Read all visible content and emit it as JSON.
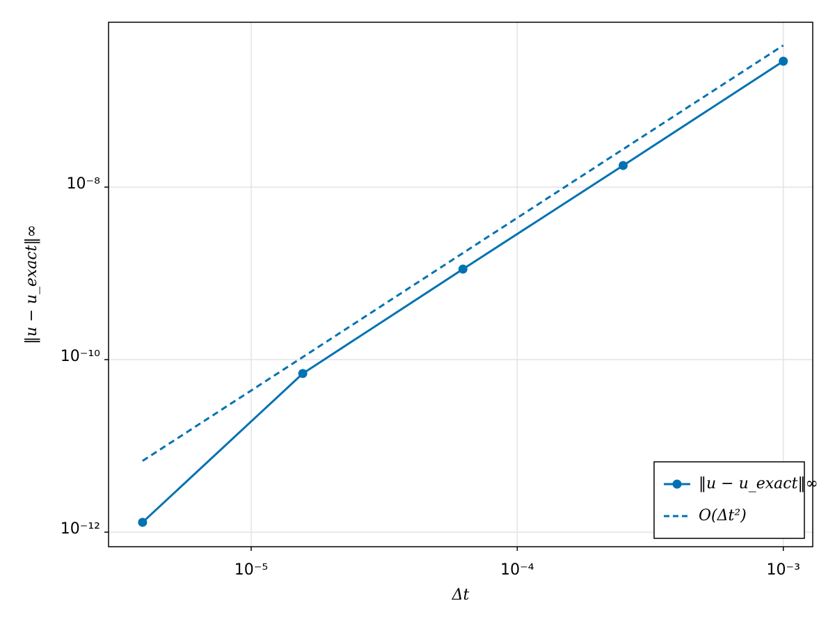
{
  "chart_data": {
    "type": "line",
    "x_label": "Δt",
    "y_label": "‖u − u_exact‖∞",
    "x": [
      3.906e-06,
      1.5625e-05,
      6.25e-05,
      0.00025,
      0.001
    ],
    "series": [
      {
        "name": "‖u − u_exact‖∞",
        "color": "#0072b2",
        "values": [
          1.3e-12,
          6.9e-11,
          1.12e-09,
          1.78e-08,
          2.88e-07
        ],
        "markers": true,
        "dashed": false
      },
      {
        "name": "O(Δt²)",
        "color": "#0072b2",
        "values": [
          6.7e-12,
          1.07e-10,
          1.72e-09,
          2.75e-08,
          4.4e-07
        ],
        "markers": false,
        "dashed": true
      }
    ],
    "xscale": "log",
    "yscale": "log",
    "xlim": [
      2.91e-06,
      0.00129
    ],
    "ylim": [
      6.78e-13,
      8.15e-07
    ],
    "xticks": [
      {
        "value": 1e-05,
        "label": "10⁻⁵"
      },
      {
        "value": 0.0001,
        "label": "10⁻⁴"
      },
      {
        "value": 0.001,
        "label": "10⁻³"
      }
    ],
    "yticks": [
      {
        "value": 1e-12,
        "label": "10⁻¹²"
      },
      {
        "value": 1e-10,
        "label": "10⁻¹⁰"
      },
      {
        "value": 1e-08,
        "label": "10⁻⁸"
      }
    ],
    "grid": true,
    "legend": "bottom-right"
  }
}
